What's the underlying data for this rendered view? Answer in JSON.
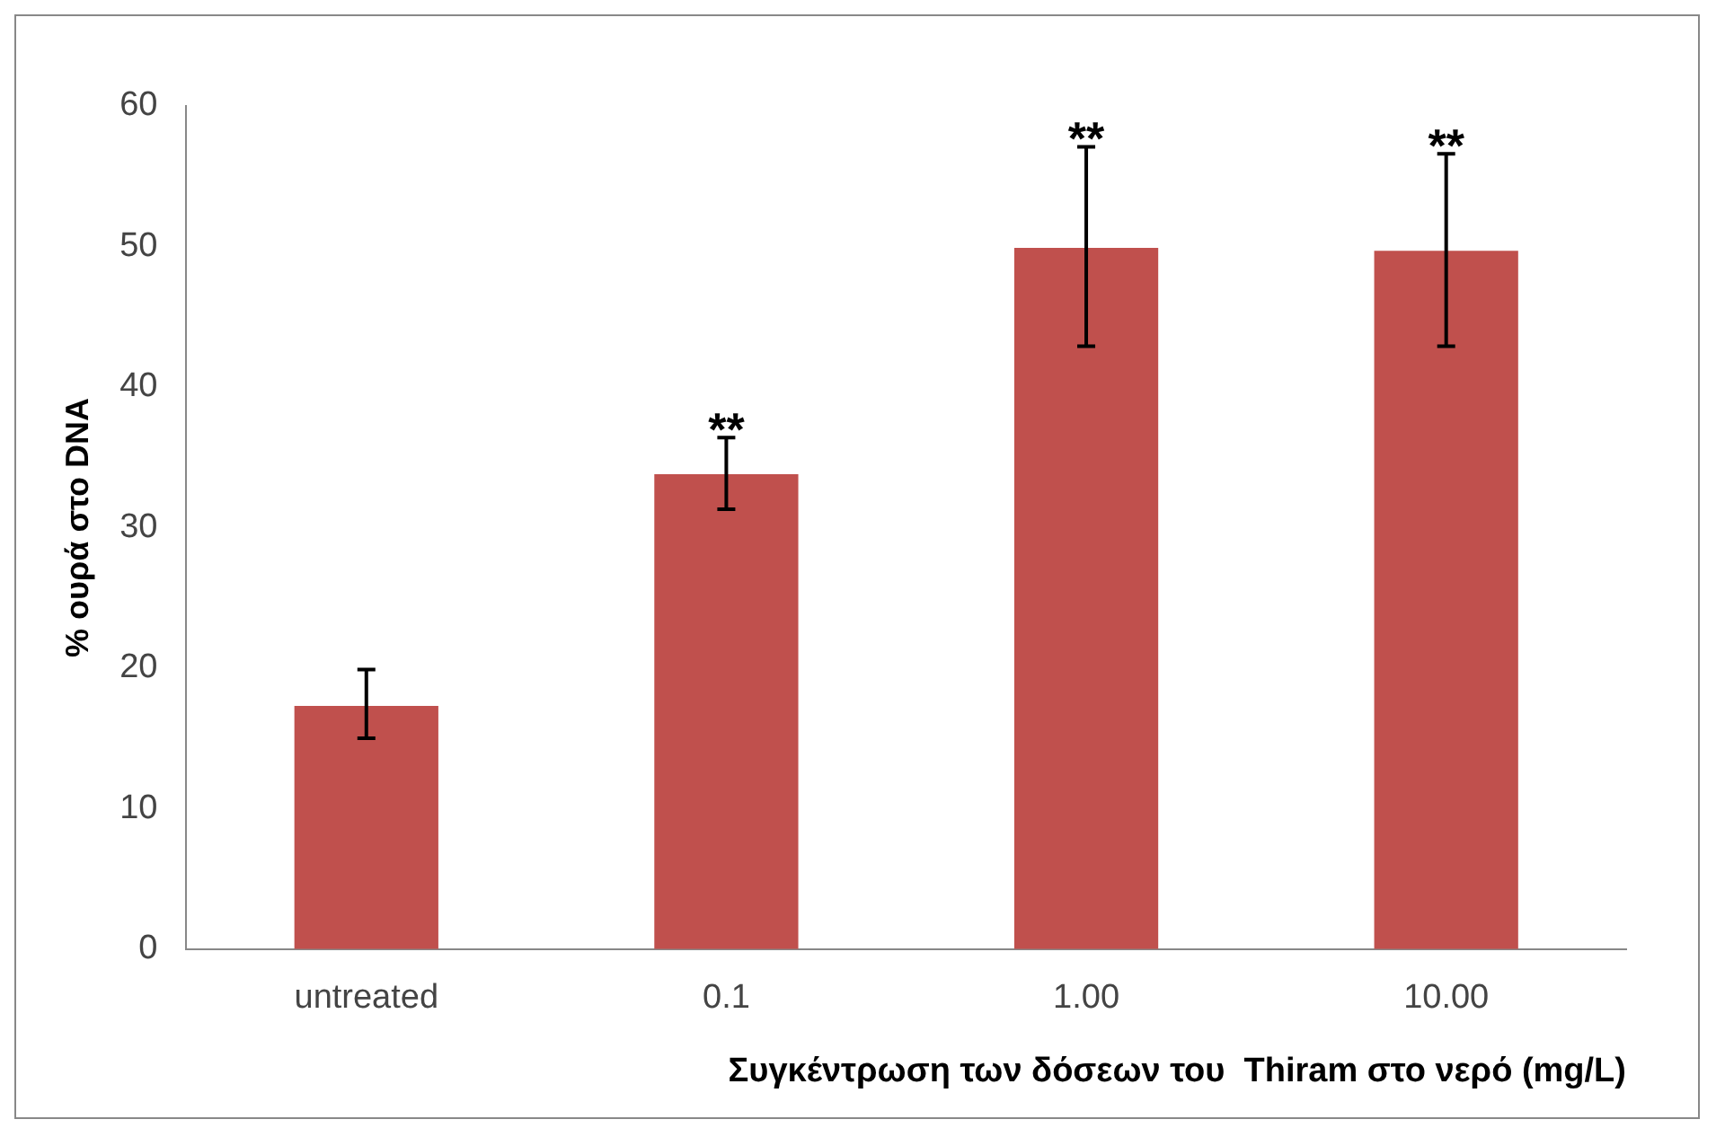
{
  "chart_data": {
    "type": "bar",
    "xlabel": "Συγκέντρωση των δόσεων του  Thiram στο νερό (mg/L)",
    "ylabel": "% ουρά στο DNA",
    "categories": [
      "untreated",
      "0.1",
      "1.00",
      "10.00"
    ],
    "values": [
      17.3,
      33.8,
      49.9,
      49.7
    ],
    "errors": [
      [
        15.0,
        19.9
      ],
      [
        31.3,
        36.4
      ],
      [
        42.9,
        57.1
      ],
      [
        42.9,
        56.6
      ]
    ],
    "color": "#c0504d",
    "ylim": [
      0,
      60
    ],
    "yticks": [
      0,
      10,
      20,
      30,
      40,
      50,
      60
    ],
    "grid": false,
    "legend": false,
    "annotations": [
      {
        "text": "**",
        "x": "0.1",
        "y": 36.4
      },
      {
        "text": "**",
        "x": "1.00",
        "y": 57.1
      },
      {
        "text": "**",
        "x": "10.00",
        "y": 56.6
      }
    ]
  }
}
